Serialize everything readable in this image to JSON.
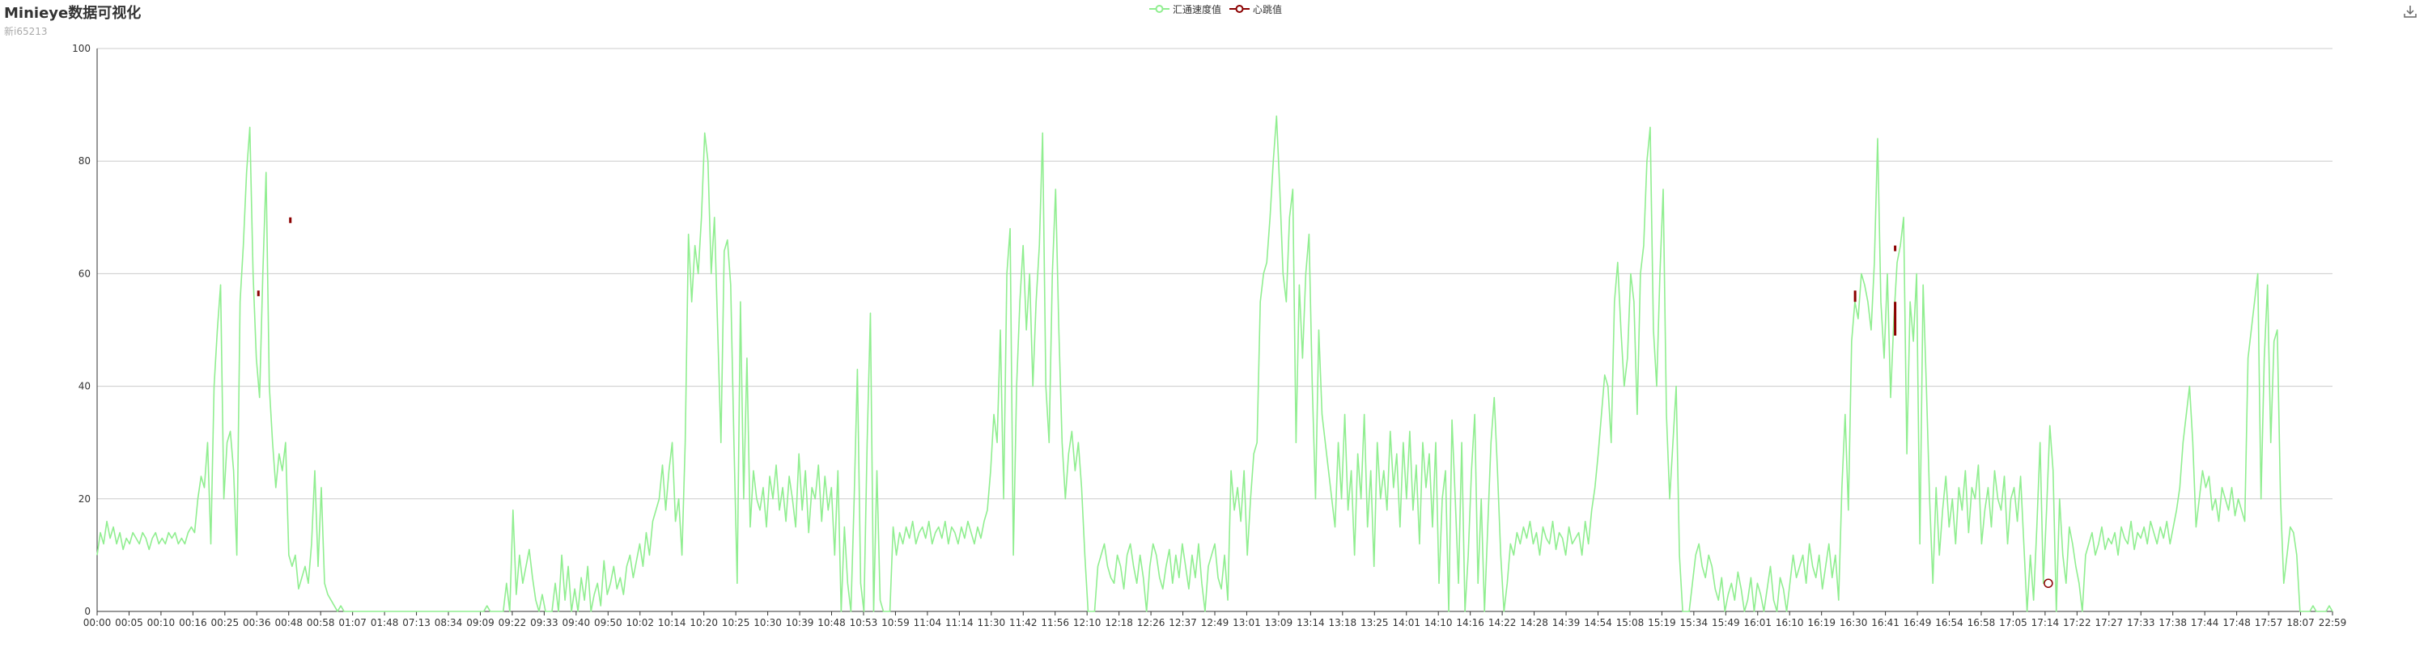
{
  "title": "Minieye数据可视化",
  "subtitle": "新i65213",
  "toolbox": {
    "icon": "download-icon"
  },
  "colors": {
    "speed": "#90ee90",
    "heartbeat": "#8b0000",
    "grid": "#cccccc",
    "axis": "#333333"
  },
  "chart_data": {
    "type": "line",
    "title": "Minieye数据可视化",
    "subtitle": "新i65213",
    "legend": {
      "placement": "top-center",
      "entries": [
        "汇通速度值",
        "心跳值"
      ]
    },
    "grid": true,
    "ylim": [
      0,
      100
    ],
    "yticks": [
      0,
      20,
      40,
      60,
      80,
      100
    ],
    "xticks": [
      "00:00",
      "00:05",
      "00:10",
      "00:16",
      "00:25",
      "00:36",
      "00:48",
      "00:58",
      "01:07",
      "01:48",
      "07:13",
      "08:34",
      "09:09",
      "09:22",
      "09:33",
      "09:40",
      "09:50",
      "10:02",
      "10:14",
      "10:20",
      "10:25",
      "10:30",
      "10:39",
      "10:48",
      "10:53",
      "10:59",
      "11:04",
      "11:14",
      "11:30",
      "11:42",
      "11:56",
      "12:10",
      "12:18",
      "12:26",
      "12:37",
      "12:49",
      "13:01",
      "13:09",
      "13:14",
      "13:18",
      "13:25",
      "14:01",
      "14:10",
      "14:16",
      "14:22",
      "14:28",
      "14:39",
      "14:54",
      "15:08",
      "15:19",
      "15:34",
      "15:49",
      "16:01",
      "16:10",
      "16:19",
      "16:30",
      "16:41",
      "16:49",
      "16:54",
      "16:58",
      "17:05",
      "17:14",
      "17:22",
      "17:27",
      "17:33",
      "17:38",
      "17:44",
      "17:48",
      "17:57",
      "18:07",
      "22:59"
    ],
    "series": [
      {
        "name": "汇通速度值",
        "type": "line",
        "color": "#90ee90",
        "values": [
          10,
          14,
          12,
          16,
          13,
          15,
          12,
          14,
          11,
          13,
          12,
          14,
          13,
          12,
          14,
          13,
          11,
          13,
          14,
          12,
          13,
          12,
          14,
          13,
          14,
          12,
          13,
          12,
          14,
          15,
          14,
          20,
          24,
          22,
          30,
          12,
          40,
          50,
          58,
          20,
          30,
          32,
          25,
          10,
          55,
          65,
          78,
          86,
          60,
          45,
          38,
          60,
          78,
          40,
          30,
          22,
          28,
          25,
          30,
          10,
          8,
          10,
          4,
          6,
          8,
          5,
          12,
          25,
          8,
          22,
          5,
          3,
          2,
          1,
          0,
          1,
          0,
          0,
          0,
          0,
          0,
          0,
          0,
          0,
          0,
          0,
          0,
          0,
          0,
          0,
          0,
          0,
          0,
          0,
          0,
          0,
          0,
          0,
          0,
          0,
          0,
          0,
          0,
          0,
          0,
          0,
          0,
          0,
          0,
          0,
          0,
          0,
          0,
          0,
          0,
          0,
          0,
          0,
          0,
          0,
          1,
          0,
          0,
          0,
          0,
          0,
          5,
          0,
          18,
          3,
          10,
          5,
          8,
          11,
          6,
          2,
          0,
          3,
          0,
          0,
          0,
          5,
          0,
          10,
          2,
          8,
          0,
          4,
          0,
          6,
          2,
          8,
          0,
          3,
          5,
          1,
          9,
          3,
          5,
          8,
          4,
          6,
          3,
          8,
          10,
          6,
          9,
          12,
          8,
          14,
          10,
          16,
          18,
          20,
          26,
          18,
          25,
          30,
          16,
          20,
          10,
          30,
          67,
          55,
          65,
          60,
          70,
          85,
          80,
          60,
          70,
          50,
          30,
          64,
          66,
          58,
          30,
          5,
          55,
          20,
          45,
          15,
          25,
          20,
          18,
          22,
          15,
          24,
          20,
          26,
          18,
          22,
          16,
          24,
          20,
          15,
          28,
          18,
          25,
          14,
          22,
          20,
          26,
          16,
          24,
          18,
          22,
          10,
          25,
          0,
          15,
          5,
          0,
          20,
          43,
          5,
          0,
          30,
          53,
          0,
          25,
          2,
          0,
          0,
          0,
          15,
          10,
          14,
          12,
          15,
          13,
          16,
          12,
          14,
          15,
          13,
          16,
          12,
          14,
          15,
          13,
          16,
          12,
          15,
          14,
          12,
          15,
          13,
          16,
          14,
          12,
          15,
          13,
          16,
          18,
          25,
          35,
          30,
          50,
          20,
          60,
          68,
          10,
          40,
          55,
          65,
          50,
          60,
          40,
          55,
          65,
          85,
          40,
          30,
          60,
          75,
          50,
          30,
          20,
          28,
          32,
          25,
          30,
          22,
          10,
          0,
          0,
          0,
          8,
          10,
          12,
          8,
          6,
          5,
          10,
          8,
          4,
          10,
          12,
          8,
          5,
          10,
          6,
          0,
          8,
          12,
          10,
          6,
          4,
          8,
          11,
          5,
          10,
          6,
          12,
          8,
          4,
          10,
          6,
          12,
          5,
          0,
          8,
          10,
          12,
          6,
          4,
          10,
          2,
          25,
          18,
          22,
          16,
          25,
          10,
          20,
          28,
          30,
          55,
          60,
          62,
          70,
          80,
          88,
          75,
          60,
          55,
          70,
          75,
          30,
          58,
          45,
          60,
          67,
          40,
          20,
          50,
          35,
          30,
          25,
          20,
          15,
          30,
          20,
          35,
          18,
          25,
          10,
          28,
          20,
          35,
          15,
          25,
          8,
          30,
          20,
          25,
          18,
          32,
          22,
          28,
          15,
          30,
          20,
          32,
          18,
          26,
          12,
          30,
          22,
          28,
          15,
          30,
          5,
          20,
          25,
          0,
          34,
          20,
          5,
          30,
          0,
          10,
          25,
          35,
          5,
          20,
          0,
          15,
          30,
          38,
          25,
          10,
          0,
          5,
          12,
          10,
          14,
          12,
          15,
          13,
          16,
          12,
          14,
          10,
          15,
          13,
          12,
          16,
          11,
          14,
          13,
          10,
          15,
          12,
          13,
          14,
          10,
          16,
          12,
          18,
          22,
          28,
          35,
          42,
          40,
          30,
          55,
          62,
          50,
          40,
          45,
          60,
          55,
          35,
          60,
          65,
          80,
          86,
          50,
          40,
          60,
          75,
          35,
          20,
          30,
          40,
          10,
          0,
          0,
          0,
          5,
          10,
          12,
          8,
          6,
          10,
          8,
          4,
          2,
          6,
          0,
          3,
          5,
          2,
          7,
          4,
          0,
          2,
          6,
          0,
          5,
          3,
          0,
          4,
          8,
          2,
          0,
          6,
          4,
          0,
          5,
          10,
          6,
          8,
          10,
          5,
          12,
          8,
          6,
          10,
          4,
          8,
          12,
          6,
          10,
          2,
          22,
          35,
          18,
          48,
          55,
          52,
          60,
          58,
          55,
          50,
          62,
          84,
          55,
          45,
          60,
          38,
          52,
          62,
          65,
          70,
          28,
          55,
          48,
          60,
          12,
          58,
          40,
          20,
          5,
          22,
          10,
          18,
          24,
          15,
          20,
          12,
          22,
          18,
          25,
          14,
          22,
          20,
          26,
          12,
          18,
          22,
          15,
          25,
          20,
          18,
          24,
          12,
          20,
          22,
          16,
          24,
          12,
          0,
          10,
          2,
          15,
          30,
          5,
          18,
          33,
          25,
          0,
          20,
          10,
          5,
          15,
          12,
          8,
          5,
          0,
          10,
          12,
          14,
          10,
          12,
          15,
          11,
          13,
          12,
          14,
          10,
          15,
          13,
          12,
          16,
          11,
          14,
          13,
          15,
          12,
          16,
          14,
          12,
          15,
          13,
          16,
          12,
          15,
          18,
          22,
          30,
          35,
          40,
          30,
          15,
          20,
          25,
          22,
          24,
          18,
          20,
          16,
          22,
          20,
          18,
          22,
          17,
          20,
          18,
          16,
          45,
          50,
          55,
          60,
          20,
          45,
          58,
          30,
          48,
          50,
          20,
          5,
          10,
          15,
          14,
          10,
          0,
          0,
          0,
          0,
          1,
          0,
          0,
          0,
          0,
          1,
          0
        ]
      },
      {
        "name": "心跳值",
        "type": "candlestick",
        "color": "#8b0000",
        "points": [
          {
            "x": "00:36",
            "low": 56,
            "high": 57
          },
          {
            "x": "00:48",
            "low": 69,
            "high": 70
          },
          {
            "x": "16:30",
            "low": 55,
            "high": 57
          },
          {
            "x": "16:41",
            "low": 49,
            "high": 55
          },
          {
            "x": "16:41",
            "low": 64,
            "high": 65
          }
        ],
        "markers": [
          {
            "x": "17:14",
            "y": 5
          }
        ]
      }
    ]
  }
}
